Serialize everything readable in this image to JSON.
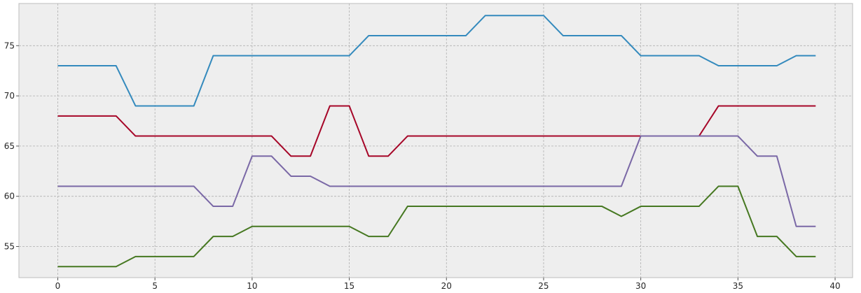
{
  "chart_data": {
    "type": "line",
    "title": "",
    "xlabel": "",
    "ylabel": "",
    "xlim": [
      -2,
      40.9
    ],
    "ylim": [
      51.9,
      79.2
    ],
    "xticks": [
      0,
      5,
      10,
      15,
      20,
      25,
      30,
      35,
      40
    ],
    "yticks": [
      55,
      60,
      65,
      70,
      75
    ],
    "grid": true,
    "legend": "none",
    "colors": {
      "background": "#EEEEEE",
      "frame": "#BCBCBC",
      "grid": "#B0B0B0"
    },
    "x": [
      0,
      1,
      2,
      3,
      4,
      5,
      6,
      7,
      8,
      9,
      10,
      11,
      12,
      13,
      14,
      15,
      16,
      17,
      18,
      19,
      20,
      21,
      22,
      23,
      24,
      25,
      26,
      27,
      28,
      29,
      30,
      31,
      32,
      33,
      34,
      35,
      36,
      37,
      38,
      39
    ],
    "series": [
      {
        "color": "#348ABD",
        "values": [
          73,
          73,
          73,
          73,
          69,
          69,
          69,
          69,
          74,
          74,
          74,
          74,
          74,
          74,
          74,
          74,
          76,
          76,
          76,
          76,
          76,
          76,
          78,
          78,
          78,
          78,
          76,
          76,
          76,
          76,
          74,
          74,
          74,
          74,
          73,
          73,
          73,
          73,
          74,
          74
        ]
      },
      {
        "color": "#A60628",
        "values": [
          68,
          68,
          68,
          68,
          66,
          66,
          66,
          66,
          66,
          66,
          66,
          66,
          64,
          64,
          69,
          69,
          64,
          64,
          66,
          66,
          66,
          66,
          66,
          66,
          66,
          66,
          66,
          66,
          66,
          66,
          66,
          66,
          66,
          66,
          69,
          69,
          69,
          69,
          69,
          69
        ]
      },
      {
        "color": "#7A68A6",
        "values": [
          61,
          61,
          61,
          61,
          61,
          61,
          61,
          61,
          59,
          59,
          64,
          64,
          62,
          62,
          61,
          61,
          61,
          61,
          61,
          61,
          61,
          61,
          61,
          61,
          61,
          61,
          61,
          61,
          61,
          61,
          66,
          66,
          66,
          66,
          66,
          66,
          64,
          64,
          57,
          57
        ]
      },
      {
        "color": "#467821",
        "values": [
          53,
          53,
          53,
          53,
          54,
          54,
          54,
          54,
          56,
          56,
          57,
          57,
          57,
          57,
          57,
          57,
          56,
          56,
          59,
          59,
          59,
          59,
          59,
          59,
          59,
          59,
          59,
          59,
          59,
          58,
          59,
          59,
          59,
          59,
          61,
          61,
          56,
          56,
          54,
          54
        ]
      }
    ]
  }
}
